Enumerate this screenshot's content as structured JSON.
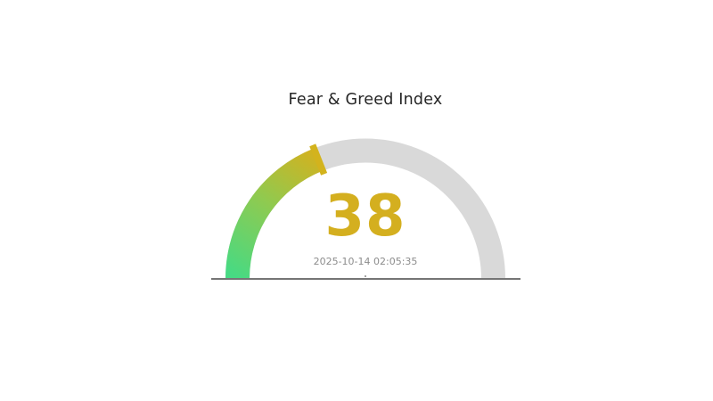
{
  "chart_data": {
    "type": "gauge",
    "title": "Fear & Greed Index",
    "value": 38,
    "min": 0,
    "max": 100,
    "timestamp": "2025-10-14 02:05:35",
    "arc_span_degrees": 180,
    "track_color": "#d9d9d9",
    "fill_gradient": [
      "#47da83",
      "#8fca50",
      "#cfb322"
    ],
    "marker_color": "#d3b31d",
    "value_color": "#d4af1f",
    "title_color": "#262626",
    "timestamp_color": "#8c8c8c",
    "baseline_color": "#757575",
    "center_dot_color": "#888888",
    "legend": "none",
    "grid": "off"
  }
}
